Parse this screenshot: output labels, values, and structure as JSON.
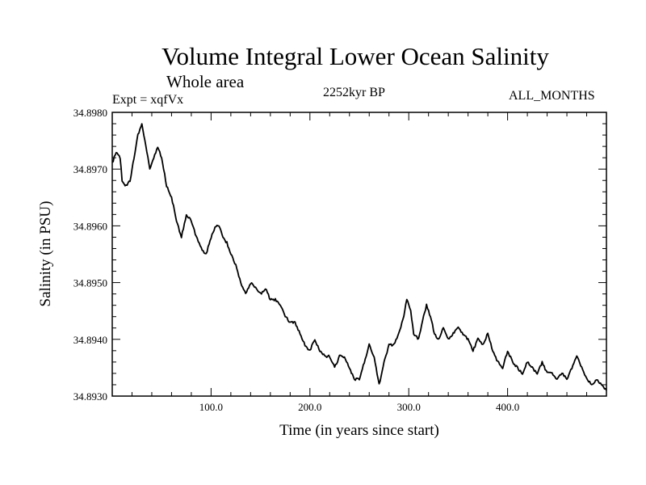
{
  "chart_data": {
    "type": "line",
    "title": "Volume Integral Lower Ocean Salinity",
    "subtitle": "Whole area",
    "left_label": "Expt = xqfVx",
    "center_label": "2252kyr BP",
    "right_label": "ALL_MONTHS",
    "xlabel": "Time (in years since start)",
    "ylabel": "Salinity (in PSU)",
    "xlim": [
      0,
      500
    ],
    "ylim": [
      34.893,
      34.898
    ],
    "xticks": [
      100,
      200,
      300,
      400
    ],
    "xtick_labels": [
      "100.0",
      "200.0",
      "300.0",
      "400.0"
    ],
    "yticks": [
      34.893,
      34.894,
      34.895,
      34.896,
      34.897,
      34.898
    ],
    "ytick_labels": [
      "34.8930",
      "34.8940",
      "34.8950",
      "34.8960",
      "34.8970",
      "34.8980"
    ],
    "series": [
      {
        "name": "Salinity",
        "x": [
          0,
          4,
          8,
          10,
          14,
          18,
          22,
          26,
          30,
          34,
          38,
          42,
          46,
          50,
          55,
          60,
          65,
          70,
          75,
          80,
          85,
          90,
          95,
          100,
          105,
          108,
          112,
          116,
          120,
          125,
          130,
          135,
          140,
          145,
          150,
          155,
          160,
          165,
          170,
          175,
          180,
          185,
          190,
          195,
          200,
          205,
          210,
          215,
          220,
          225,
          230,
          235,
          240,
          245,
          250,
          255,
          260,
          265,
          270,
          275,
          280,
          285,
          290,
          295,
          298,
          302,
          305,
          310,
          315,
          318,
          322,
          326,
          330,
          335,
          340,
          345,
          350,
          355,
          360,
          365,
          370,
          375,
          380,
          385,
          390,
          395,
          400,
          405,
          410,
          415,
          420,
          425,
          430,
          435,
          440,
          445,
          450,
          455,
          460,
          465,
          470,
          475,
          480,
          485,
          490,
          495,
          500
        ],
        "values": [
          34.8971,
          34.8973,
          34.8972,
          34.8968,
          34.8967,
          34.8968,
          34.8972,
          34.8976,
          34.8978,
          34.8974,
          34.897,
          34.8972,
          34.8974,
          34.8972,
          34.8967,
          34.8965,
          34.8961,
          34.8958,
          34.8962,
          34.8961,
          34.8958,
          34.8956,
          34.8955,
          34.8958,
          34.896,
          34.896,
          34.8958,
          34.8957,
          34.8955,
          34.8953,
          34.895,
          34.8948,
          34.895,
          34.8949,
          34.8948,
          34.8949,
          34.8947,
          34.8947,
          34.8946,
          34.8944,
          34.8943,
          34.8943,
          34.8941,
          34.8939,
          34.8938,
          34.894,
          34.8938,
          34.8937,
          34.8937,
          34.8935,
          34.8937,
          34.8937,
          34.8935,
          34.8933,
          34.8933,
          34.8936,
          34.8939,
          34.8937,
          34.8932,
          34.8936,
          34.8939,
          34.8939,
          34.8941,
          34.8944,
          34.8947,
          34.8945,
          34.8941,
          34.894,
          34.8944,
          34.8946,
          34.8944,
          34.8941,
          34.894,
          34.8942,
          34.894,
          34.8941,
          34.8942,
          34.8941,
          34.894,
          34.8938,
          34.894,
          34.8939,
          34.8941,
          34.8938,
          34.8936,
          34.8935,
          34.8938,
          34.8936,
          34.8935,
          34.8934,
          34.8936,
          34.8935,
          34.8934,
          34.8936,
          34.8934,
          34.8934,
          34.8933,
          34.8934,
          34.8933,
          34.8935,
          34.8937,
          34.8935,
          34.8933,
          34.8932,
          34.8933,
          34.8932,
          34.8931
        ]
      }
    ]
  }
}
